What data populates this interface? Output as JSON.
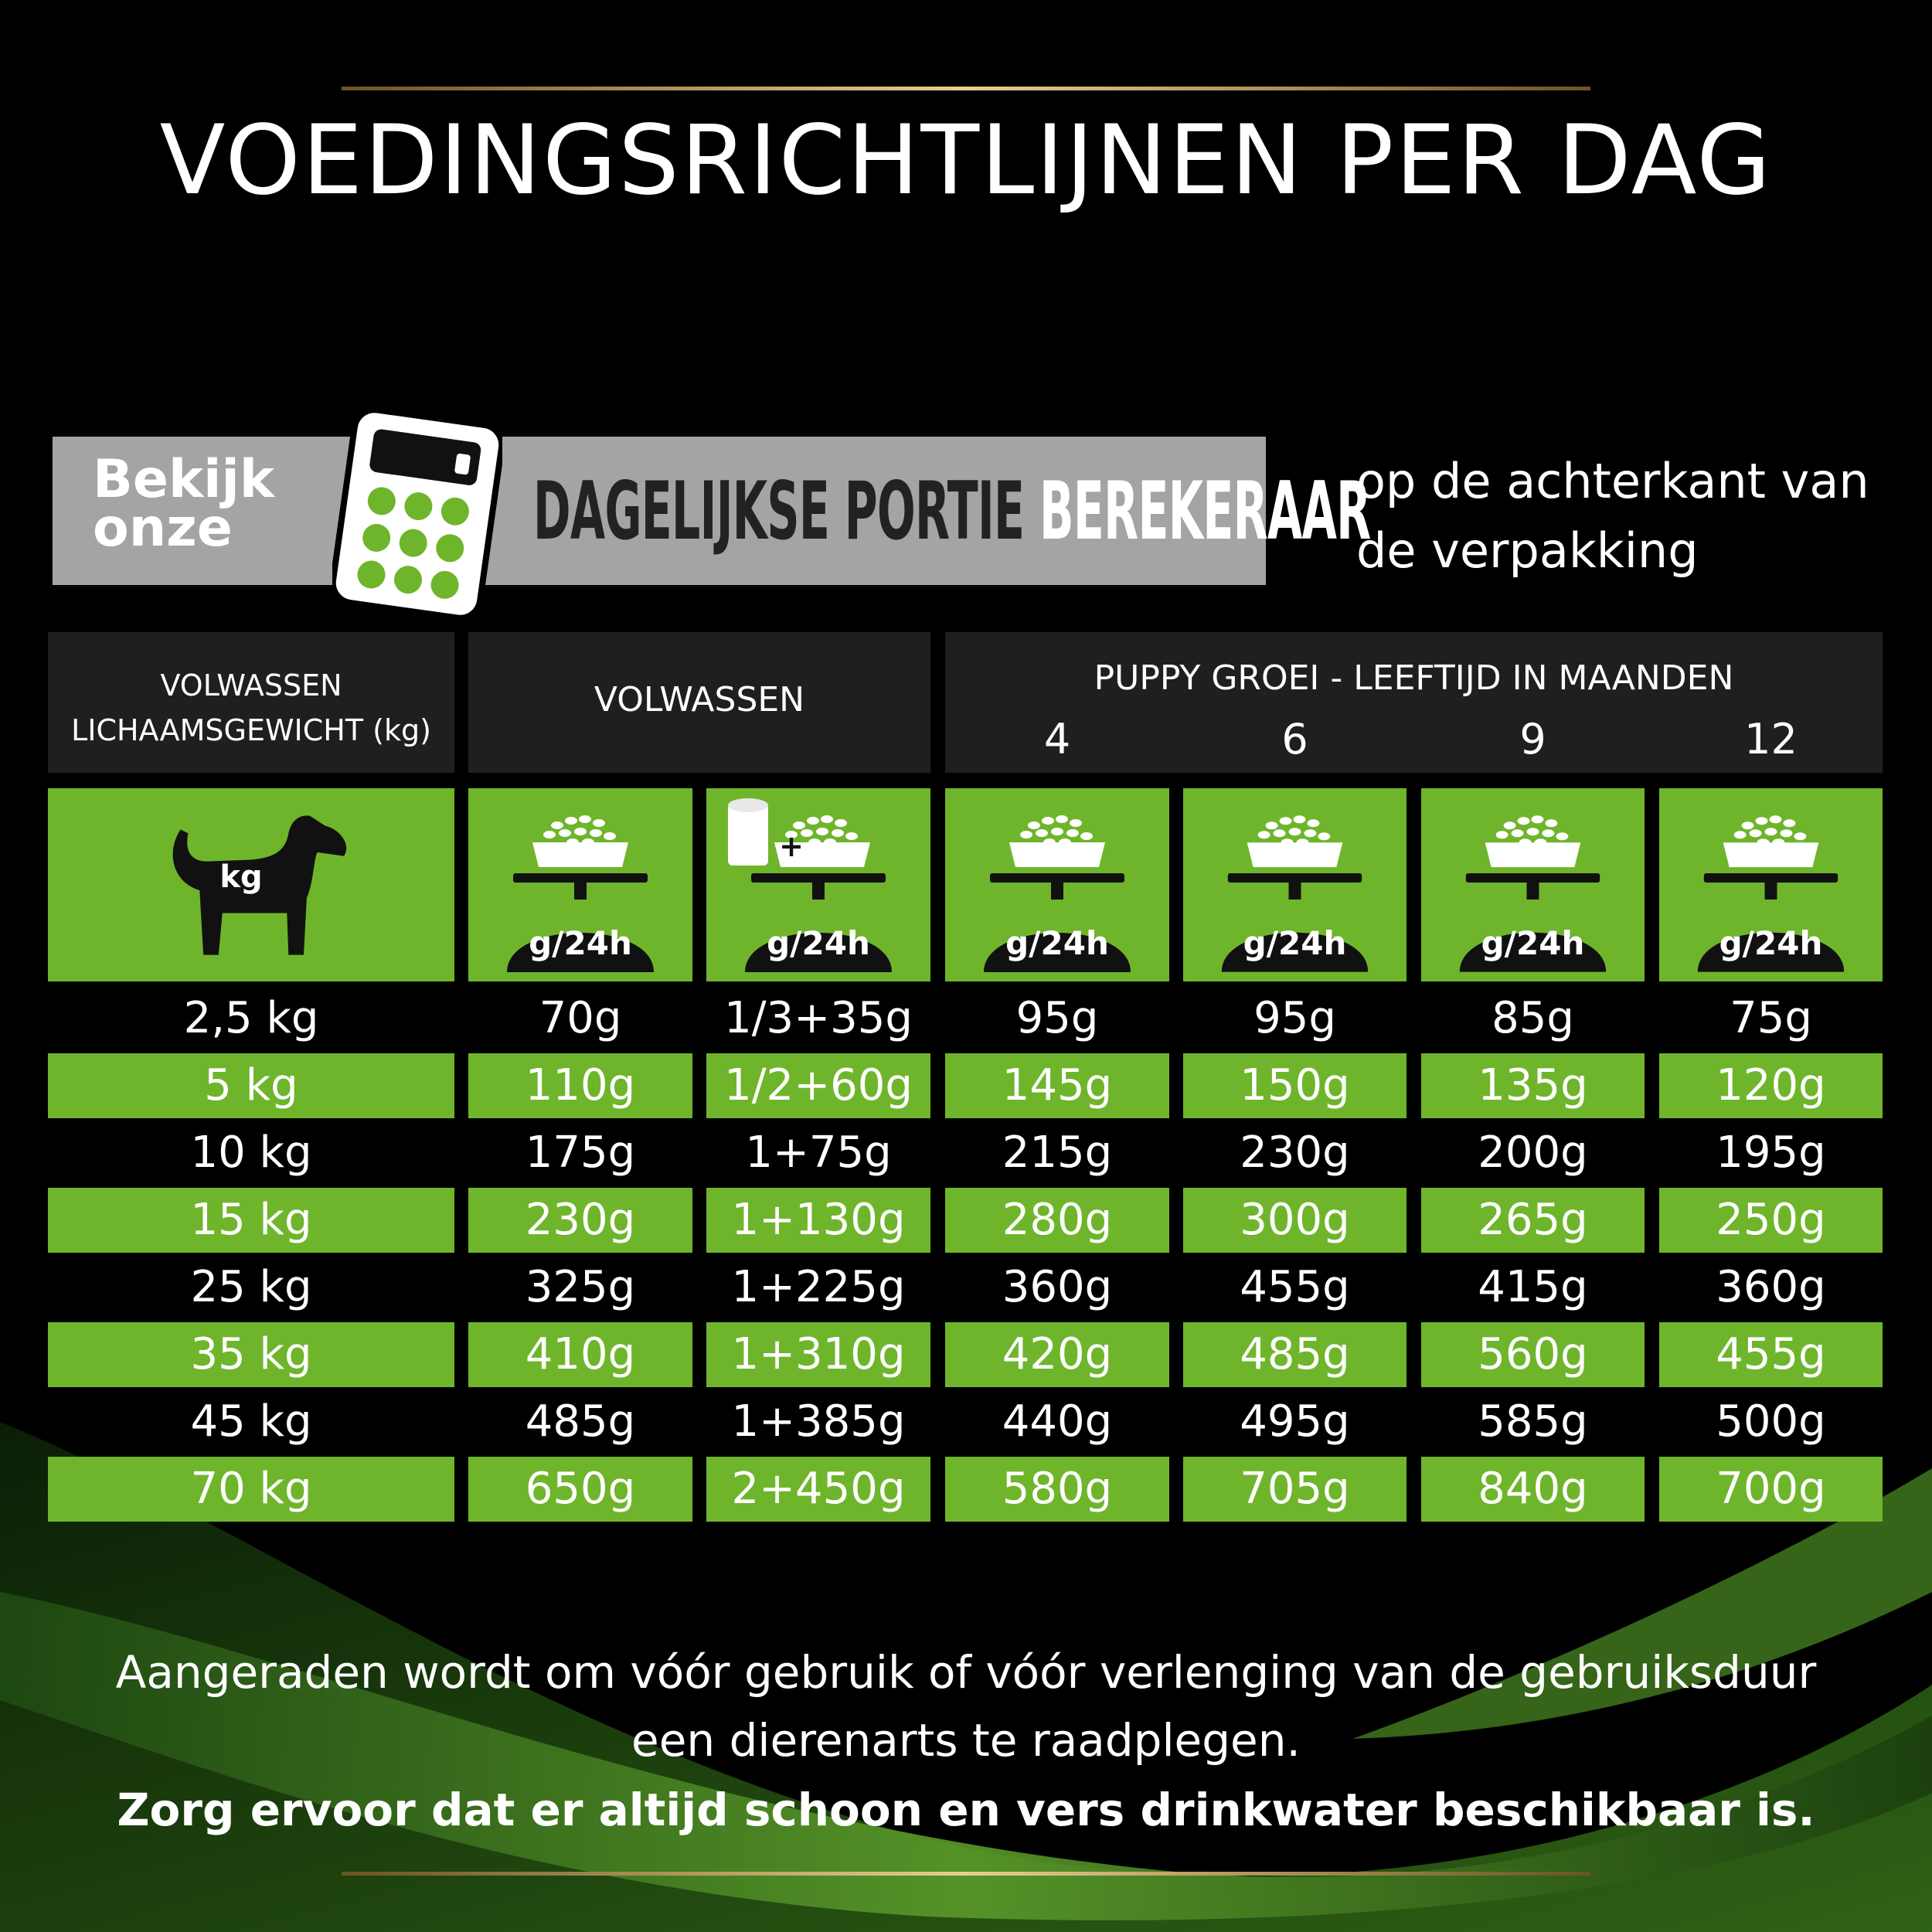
{
  "title": "VOEDINGSRICHTLIJNEN PER DAG",
  "banner": {
    "lead_line1": "Bekijk",
    "lead_line2": "onze",
    "heading_dark": "DAGELIJKSE PORTIE",
    "heading_light": "BEREKERAAR",
    "note_line1": "op de achterkant van",
    "note_line2": "de verpakking"
  },
  "table": {
    "header_weight_line1": "VOLWASSEN",
    "header_weight_line2": "LICHAAMSGEWICHT (kg)",
    "header_adult": "VOLWASSEN",
    "header_puppy": "PUPPY GROEI - LEEFTIJD IN MAANDEN",
    "puppy_ages": [
      "4",
      "6",
      "9",
      "12"
    ],
    "weight_icon_label": "kg",
    "unit_label": "g/24h",
    "plus_sign": "+",
    "rows": [
      [
        "2,5 kg",
        "70g",
        "1/3+35g",
        "95g",
        "95g",
        "85g",
        "75g"
      ],
      [
        "5 kg",
        "110g",
        "1/2+60g",
        "145g",
        "150g",
        "135g",
        "120g"
      ],
      [
        "10 kg",
        "175g",
        "1+75g",
        "215g",
        "230g",
        "200g",
        "195g"
      ],
      [
        "15 kg",
        "230g",
        "1+130g",
        "280g",
        "300g",
        "265g",
        "250g"
      ],
      [
        "25 kg",
        "325g",
        "1+225g",
        "360g",
        "455g",
        "415g",
        "360g"
      ],
      [
        "35 kg",
        "410g",
        "1+310g",
        "420g",
        "485g",
        "560g",
        "455g"
      ],
      [
        "45 kg",
        "485g",
        "1+385g",
        "440g",
        "495g",
        "585g",
        "500g"
      ],
      [
        "70 kg",
        "650g",
        "2+450g",
        "580g",
        "705g",
        "840g",
        "700g"
      ]
    ]
  },
  "footer": {
    "line1": "Aangeraden wordt om vóór gebruik of vóór verlenging van de gebruiksduur",
    "line2": "een dierenarts te raadplegen.",
    "line3": "Zorg ervoor dat er altijd schoon en vers drinkwater beschikbaar is."
  },
  "colors": {
    "green": "#6fb52c",
    "header_bg": "#1f1f1f",
    "banner_gray": "#a3a4a6",
    "gold": "#d4b46a"
  },
  "icons": [
    "calculator-icon",
    "dog-icon",
    "dry-food-bowl-icon",
    "can-icon",
    "scale-icon"
  ]
}
